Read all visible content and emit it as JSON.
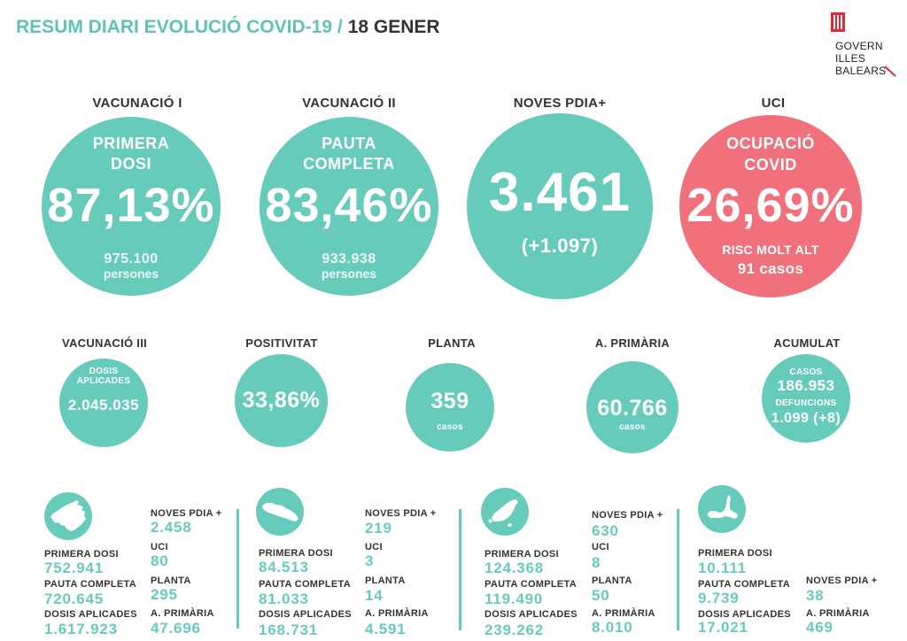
{
  "header": {
    "title": "RESUM DIARI EVOLUCIÓ COVID-19 /",
    "date": "18 GENER"
  },
  "logo": {
    "emblem_icon": "govern-emblem-icon",
    "line1": "GOVERN",
    "line2": "ILLES",
    "line3": "BALEARS"
  },
  "colors": {
    "teal": "#67cbbc",
    "red": "#f0717b",
    "title_teal": "#5ec3b3",
    "text_dark": "#333333",
    "logo_red": "#e3263a"
  },
  "main_stats": [
    {
      "heading": "VACUNACIÓ I",
      "label_line1": "PRIMERA",
      "label_line2": "DOSI",
      "value": "87,13%",
      "sub_value": "975.100",
      "sub_label": "persones"
    },
    {
      "heading": "VACUNACIÓ II",
      "label_line1": "PAUTA",
      "label_line2": "COMPLETA",
      "value": "83,46%",
      "sub_value": "933.938",
      "sub_label": "persones"
    },
    {
      "heading": "NOVES PDIA+",
      "value": "3.461",
      "change": "(+1.097)"
    },
    {
      "heading": "UCI",
      "label_line1": "OCUPACIÓ",
      "label_line2": "COVID",
      "value": "26,69%",
      "risk_level": "RISC MOLT ALT",
      "cases": "91 casos"
    }
  ],
  "secondary_stats": [
    {
      "heading": "VACUNACIÓ III",
      "label_line1": "DOSIS",
      "label_line2": "APLICADES",
      "value": "2.045.035"
    },
    {
      "heading": "POSITIVITAT",
      "value": "33,86%"
    },
    {
      "heading": "PLANTA",
      "value": "359",
      "unit": "casos"
    },
    {
      "heading": "A. PRIMÀRIA",
      "value": "60.766",
      "unit": "casos"
    },
    {
      "heading": "ACUMULAT",
      "cases_label": "CASOS",
      "cases": "186.953",
      "deaths_label": "DEFUNCIONS",
      "deaths": "1.099 (+8)"
    }
  ],
  "islands": [
    {
      "icon": "mallorca-island-icon",
      "vaccination": [
        {
          "label": "PRIMERA DOSI",
          "value": "752.941"
        },
        {
          "label": "PAUTA COMPLETA",
          "value": "720.645"
        },
        {
          "label": "DOSIS APLICADES",
          "value": "1.617.923"
        }
      ],
      "health": [
        {
          "label": "NOVES PDIA +",
          "value": "2.458"
        },
        {
          "label": "UCI",
          "value": "80"
        },
        {
          "label": "PLANTA",
          "value": "295"
        },
        {
          "label": "A. PRIMÀRIA",
          "value": "47.696"
        }
      ]
    },
    {
      "icon": "menorca-island-icon",
      "vaccination": [
        {
          "label": "PRIMERA DOSI",
          "value": "84.513"
        },
        {
          "label": "PAUTA COMPLETA",
          "value": "81.033"
        },
        {
          "label": "DOSIS APLICADES",
          "value": "168.731"
        }
      ],
      "health": [
        {
          "label": "NOVES PDIA +",
          "value": "219"
        },
        {
          "label": "UCI",
          "value": "3"
        },
        {
          "label": "PLANTA",
          "value": "14"
        },
        {
          "label": "A. PRIMÀRIA",
          "value": "4.591"
        }
      ]
    },
    {
      "icon": "ibiza-island-icon",
      "vaccination": [
        {
          "label": "PRIMERA DOSI",
          "value": "124.368"
        },
        {
          "label": "PAUTA COMPLETA",
          "value": "119.490"
        },
        {
          "label": "DOSIS APLICADES",
          "value": "239.262"
        }
      ],
      "health": [
        {
          "label": "NOVES PDIA +",
          "value": "630"
        },
        {
          "label": "UCI",
          "value": "8"
        },
        {
          "label": "PLANTA",
          "value": "50"
        },
        {
          "label": "A. PRIMÀRIA",
          "value": "8.010"
        }
      ]
    },
    {
      "icon": "formentera-island-icon",
      "vaccination": [
        {
          "label": "PRIMERA DOSI",
          "value": "10.111"
        },
        {
          "label": "PAUTA COMPLETA",
          "value": "9.739"
        },
        {
          "label": "DOSIS APLICADES",
          "value": "17.021"
        }
      ],
      "health": [
        {
          "label": "NOVES PDIA +",
          "value": "38"
        },
        {
          "label": "A. PRIMÀRIA",
          "value": "469"
        }
      ]
    }
  ]
}
